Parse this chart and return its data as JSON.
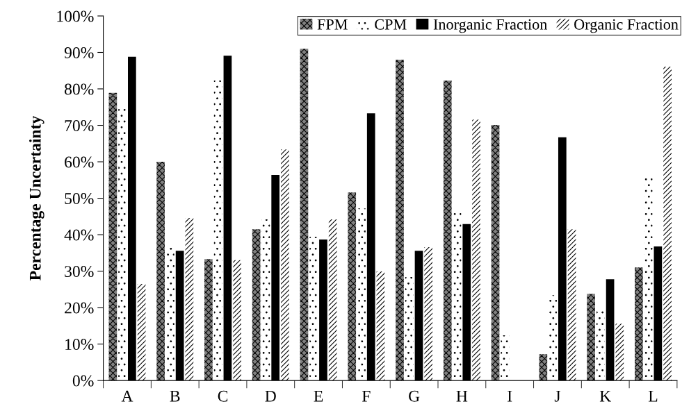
{
  "chart_data": {
    "type": "bar",
    "ylabel": "Percentage Uncertainty",
    "categories": [
      "A",
      "B",
      "C",
      "D",
      "E",
      "F",
      "G",
      "H",
      "I",
      "J",
      "K",
      "L"
    ],
    "series": [
      {
        "name": "FPM",
        "color": "#808080",
        "values": [
          78.9,
          60,
          33.3,
          41.5,
          91,
          51.6,
          88,
          82.3,
          70.1,
          7.2,
          23.8,
          31
        ]
      },
      {
        "name": "CPM",
        "color": "#ffffff",
        "values": [
          75,
          36.6,
          82.3,
          44.2,
          39.4,
          47.2,
          28.4,
          46.1,
          12.4,
          23.4,
          19.2,
          55.8
        ]
      },
      {
        "name": "Inorganic Fraction",
        "color": "#000000",
        "values": [
          88.8,
          35.6,
          89.1,
          56.4,
          38.7,
          73.3,
          35.6,
          42.9,
          null,
          66.7,
          27.8,
          36.8
        ]
      },
      {
        "name": "Organic Fraction",
        "color": "#ffffff",
        "values": [
          26.5,
          44.6,
          33,
          63.4,
          44.2,
          29.9,
          36.6,
          71.6,
          null,
          41.5,
          15.6,
          86.1
        ]
      }
    ],
    "ylim": [
      0,
      100
    ],
    "yticks": [
      {
        "value": 0,
        "label": "0%"
      },
      {
        "value": 10,
        "label": "10%"
      },
      {
        "value": 20,
        "label": "20%"
      },
      {
        "value": 30,
        "label": "30%"
      },
      {
        "value": 40,
        "label": "40%"
      },
      {
        "value": 50,
        "label": "50%"
      },
      {
        "value": 60,
        "label": "60%"
      },
      {
        "value": 70,
        "label": "70%"
      },
      {
        "value": 80,
        "label": "80%"
      },
      {
        "value": 90,
        "label": "90%"
      },
      {
        "value": 100,
        "label": "100%"
      }
    ],
    "grid": false,
    "legend": "top right"
  }
}
